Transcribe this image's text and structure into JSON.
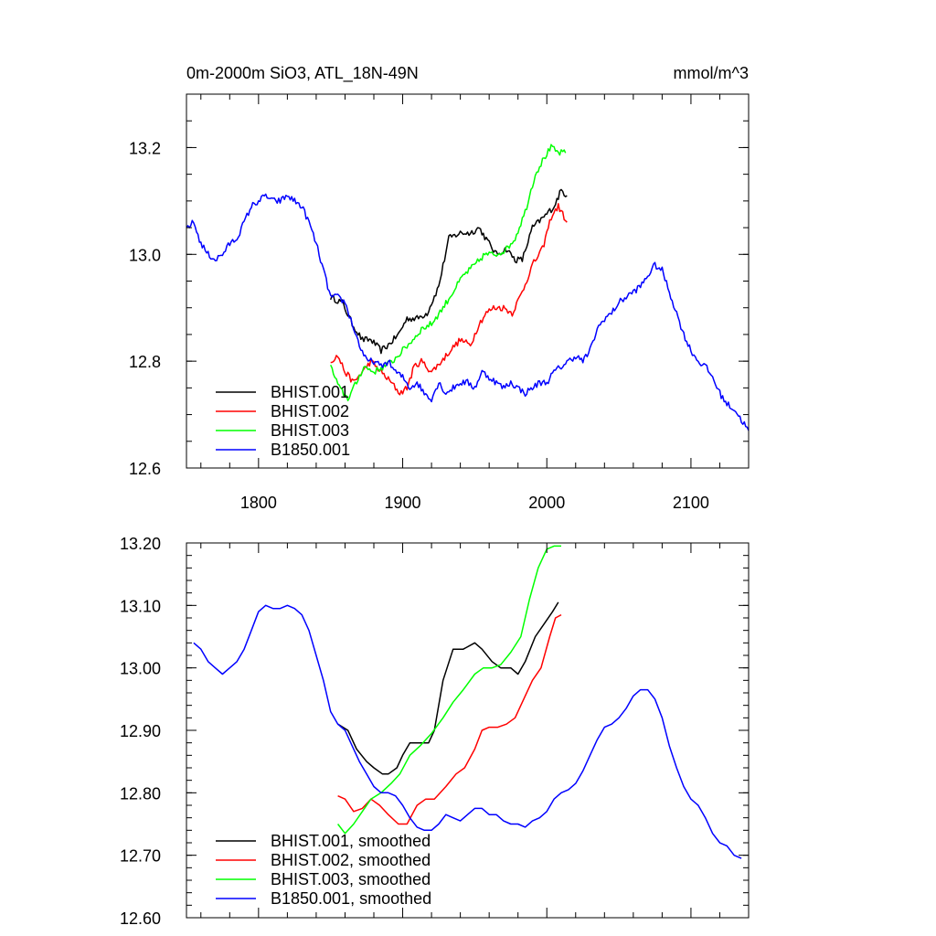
{
  "chart_data": [
    {
      "type": "line",
      "title": "0m-2000m SiO3, ATL_18N-49N",
      "units": "mmol/m^3",
      "xlim": [
        1750,
        2140
      ],
      "ylim": [
        12.6,
        13.3
      ],
      "xticks": [
        1800,
        1900,
        2000,
        2100
      ],
      "xtick_labels": [
        "1800",
        "1900",
        "2000",
        "2100"
      ],
      "yticks": [
        12.6,
        12.8,
        13.0,
        13.2
      ],
      "ytick_labels": [
        "12.6",
        "12.8",
        "13.0",
        "13.2"
      ],
      "legend_position": "bottom-left",
      "series": [
        {
          "name": "BHIST.001",
          "color": "#000000",
          "x": [
            1850,
            1858,
            1865,
            1872,
            1878,
            1885,
            1890,
            1897,
            1903,
            1910,
            1917,
            1925,
            1932,
            1940,
            1947,
            1953,
            1960,
            1965,
            1972,
            1978,
            1983,
            1990,
            1998,
            2005,
            2010,
            2014
          ],
          "y": [
            12.92,
            12.91,
            12.87,
            12.84,
            12.84,
            12.82,
            12.83,
            12.85,
            12.88,
            12.88,
            12.89,
            12.94,
            13.03,
            13.04,
            13.04,
            13.05,
            13.02,
            13.0,
            13.01,
            12.99,
            12.99,
            13.05,
            13.07,
            13.09,
            13.12,
            13.11
          ]
        },
        {
          "name": "BHIST.002",
          "color": "#ff0000",
          "x": [
            1850,
            1855,
            1860,
            1866,
            1872,
            1878,
            1885,
            1892,
            1898,
            1903,
            1908,
            1913,
            1920,
            1927,
            1933,
            1940,
            1947,
            1953,
            1958,
            1963,
            1970,
            1976,
            1983,
            1990,
            1997,
            2003,
            2008,
            2014
          ],
          "y": [
            12.8,
            12.81,
            12.78,
            12.76,
            12.78,
            12.8,
            12.78,
            12.76,
            12.74,
            12.75,
            12.79,
            12.8,
            12.78,
            12.8,
            12.82,
            12.84,
            12.83,
            12.87,
            12.89,
            12.9,
            12.9,
            12.89,
            12.93,
            12.98,
            13.01,
            13.07,
            13.09,
            13.06
          ]
        },
        {
          "name": "BHIST.003",
          "color": "#00ff00",
          "x": [
            1850,
            1856,
            1862,
            1868,
            1873,
            1880,
            1887,
            1893,
            1900,
            1907,
            1913,
            1920,
            1928,
            1935,
            1942,
            1950,
            1957,
            1965,
            1972,
            1978,
            1985,
            1992,
            1998,
            2003,
            2008,
            2013
          ],
          "y": [
            12.79,
            12.75,
            12.73,
            12.76,
            12.79,
            12.78,
            12.79,
            12.8,
            12.82,
            12.84,
            12.86,
            12.87,
            12.9,
            12.93,
            12.96,
            12.98,
            13.0,
            13.0,
            13.01,
            13.03,
            13.08,
            13.15,
            13.18,
            13.2,
            13.19,
            13.19
          ]
        },
        {
          "name": "B1850.001",
          "color": "#0000ff",
          "x": [
            1750,
            1755,
            1760,
            1765,
            1770,
            1775,
            1780,
            1785,
            1790,
            1795,
            1800,
            1805,
            1810,
            1815,
            1820,
            1825,
            1830,
            1835,
            1840,
            1845,
            1850,
            1855,
            1860,
            1865,
            1870,
            1875,
            1880,
            1885,
            1890,
            1895,
            1900,
            1905,
            1910,
            1915,
            1920,
            1925,
            1930,
            1935,
            1940,
            1945,
            1950,
            1955,
            1960,
            1965,
            1970,
            1975,
            1980,
            1985,
            1990,
            1995,
            2000,
            2005,
            2010,
            2015,
            2020,
            2025,
            2030,
            2035,
            2040,
            2045,
            2050,
            2055,
            2060,
            2065,
            2070,
            2075,
            2080,
            2085,
            2090,
            2095,
            2100,
            2105,
            2110,
            2115,
            2120,
            2125,
            2130,
            2135,
            2140
          ],
          "y": [
            13.05,
            13.06,
            13.02,
            13.0,
            12.99,
            13.0,
            13.02,
            13.03,
            13.06,
            13.09,
            13.1,
            13.11,
            13.1,
            13.1,
            13.11,
            13.1,
            13.09,
            13.06,
            13.02,
            12.97,
            12.92,
            12.92,
            12.91,
            12.87,
            12.83,
            12.8,
            12.8,
            12.79,
            12.8,
            12.78,
            12.77,
            12.75,
            12.76,
            12.74,
            12.73,
            12.76,
            12.74,
            12.75,
            12.76,
            12.76,
            12.75,
            12.78,
            12.77,
            12.76,
            12.75,
            12.76,
            12.75,
            12.74,
            12.75,
            12.76,
            12.76,
            12.78,
            12.79,
            12.8,
            12.81,
            12.8,
            12.82,
            12.86,
            12.88,
            12.89,
            12.91,
            12.92,
            12.93,
            12.94,
            12.96,
            12.98,
            12.97,
            12.93,
            12.89,
            12.85,
            12.82,
            12.8,
            12.79,
            12.77,
            12.74,
            12.72,
            12.71,
            12.69,
            12.67
          ]
        }
      ],
      "legend": [
        "BHIST.001",
        "BHIST.002",
        "BHIST.003",
        "B1850.001"
      ]
    },
    {
      "type": "line",
      "xlim": [
        1750,
        2140
      ],
      "ylim": [
        12.6,
        13.2
      ],
      "xticks": [
        1800,
        1900,
        2000,
        2100
      ],
      "yticks": [
        12.6,
        12.7,
        12.8,
        12.9,
        13.0,
        13.1,
        13.2
      ],
      "ytick_labels": [
        "12.60",
        "12.70",
        "12.80",
        "12.90",
        "13.00",
        "13.10",
        "13.20"
      ],
      "legend_position": "bottom-left",
      "series": [
        {
          "name": "BHIST.001, smoothed",
          "color": "#000000",
          "x": [
            1855,
            1862,
            1868,
            1875,
            1880,
            1886,
            1890,
            1896,
            1900,
            1905,
            1912,
            1918,
            1922,
            1928,
            1935,
            1942,
            1950,
            1955,
            1962,
            1968,
            1975,
            1980,
            1985,
            1992,
            1998,
            2004,
            2008
          ],
          "y": [
            12.91,
            12.9,
            12.87,
            12.85,
            12.84,
            12.83,
            12.83,
            12.84,
            12.86,
            12.88,
            12.88,
            12.88,
            12.9,
            12.98,
            13.03,
            13.03,
            13.04,
            13.03,
            13.01,
            13.0,
            13.0,
            12.99,
            13.01,
            13.05,
            13.07,
            13.09,
            13.105
          ]
        },
        {
          "name": "BHIST.002, smoothed",
          "color": "#ff0000",
          "x": [
            1855,
            1860,
            1866,
            1872,
            1878,
            1884,
            1890,
            1897,
            1903,
            1910,
            1916,
            1922,
            1930,
            1937,
            1943,
            1950,
            1955,
            1960,
            1966,
            1972,
            1978,
            1984,
            1990,
            1996,
            2002,
            2006,
            2010
          ],
          "y": [
            12.795,
            12.79,
            12.77,
            12.775,
            12.79,
            12.78,
            12.765,
            12.75,
            12.75,
            12.78,
            12.79,
            12.79,
            12.81,
            12.83,
            12.84,
            12.87,
            12.9,
            12.905,
            12.905,
            12.91,
            12.92,
            12.95,
            12.98,
            13.0,
            13.05,
            13.08,
            13.085
          ]
        },
        {
          "name": "BHIST.003, smoothed",
          "color": "#00ff00",
          "x": [
            1855,
            1860,
            1866,
            1872,
            1878,
            1885,
            1892,
            1898,
            1905,
            1912,
            1920,
            1928,
            1935,
            1942,
            1950,
            1956,
            1962,
            1968,
            1975,
            1982,
            1988,
            1994,
            2000,
            2005,
            2010
          ],
          "y": [
            12.75,
            12.735,
            12.75,
            12.77,
            12.79,
            12.8,
            12.815,
            12.83,
            12.86,
            12.875,
            12.895,
            12.92,
            12.945,
            12.965,
            12.99,
            13.0,
            13.0,
            13.005,
            13.025,
            13.05,
            13.11,
            13.16,
            13.19,
            13.195,
            13.195
          ]
        },
        {
          "name": "B1850.001, smoothed",
          "color": "#0000ff",
          "x": [
            1755,
            1760,
            1765,
            1770,
            1775,
            1780,
            1785,
            1790,
            1795,
            1800,
            1805,
            1810,
            1815,
            1820,
            1825,
            1830,
            1835,
            1840,
            1845,
            1850,
            1855,
            1860,
            1865,
            1870,
            1875,
            1880,
            1885,
            1890,
            1895,
            1900,
            1905,
            1910,
            1915,
            1920,
            1925,
            1930,
            1935,
            1940,
            1945,
            1950,
            1955,
            1960,
            1965,
            1970,
            1975,
            1980,
            1985,
            1990,
            1995,
            2000,
            2005,
            2010,
            2015,
            2020,
            2025,
            2030,
            2035,
            2040,
            2045,
            2050,
            2055,
            2060,
            2065,
            2070,
            2075,
            2080,
            2085,
            2090,
            2095,
            2100,
            2105,
            2110,
            2115,
            2120,
            2125,
            2130,
            2135
          ],
          "y": [
            13.04,
            13.03,
            13.01,
            13.0,
            12.99,
            13.0,
            13.01,
            13.03,
            13.06,
            13.09,
            13.1,
            13.095,
            13.095,
            13.1,
            13.095,
            13.085,
            13.06,
            13.02,
            12.98,
            12.93,
            12.91,
            12.9,
            12.875,
            12.85,
            12.83,
            12.81,
            12.8,
            12.8,
            12.795,
            12.78,
            12.76,
            12.745,
            12.74,
            12.74,
            12.75,
            12.765,
            12.76,
            12.755,
            12.765,
            12.775,
            12.775,
            12.765,
            12.765,
            12.755,
            12.75,
            12.75,
            12.745,
            12.755,
            12.76,
            12.77,
            12.79,
            12.8,
            12.805,
            12.815,
            12.835,
            12.86,
            12.885,
            12.905,
            12.91,
            12.92,
            12.935,
            12.955,
            12.965,
            12.965,
            12.95,
            12.92,
            12.875,
            12.84,
            12.81,
            12.79,
            12.78,
            12.76,
            12.735,
            12.72,
            12.715,
            12.7,
            12.695
          ]
        }
      ],
      "legend": [
        "BHIST.001, smoothed",
        "BHIST.002, smoothed",
        "BHIST.003, smoothed",
        "B1850.001, smoothed"
      ]
    }
  ]
}
